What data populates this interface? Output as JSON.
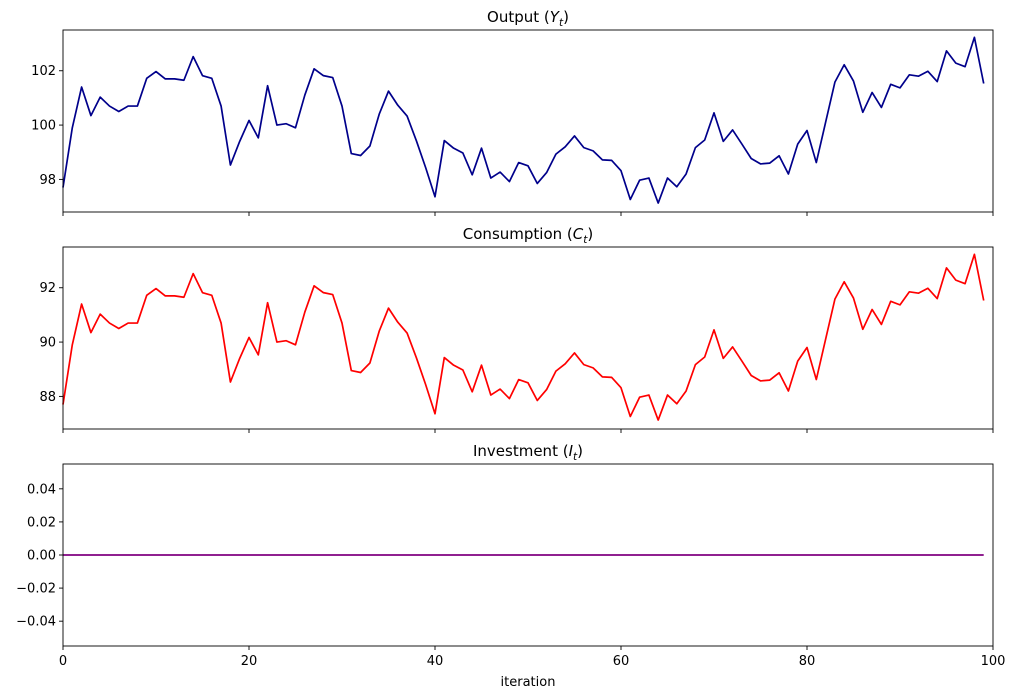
{
  "chart_data": [
    {
      "type": "line",
      "title": "Output (Y_t)",
      "title_parts": {
        "text": "Output (",
        "var": "Y",
        "sub": "t",
        "close": ")"
      },
      "xlabel": "",
      "ylabel": "",
      "xlim": [
        0,
        100
      ],
      "ylim": [
        96.8,
        103.5
      ],
      "yticks": [
        98,
        100,
        102
      ],
      "ytick_labels": [
        "98",
        "100",
        "102"
      ],
      "xticks": [
        0,
        20,
        40,
        60,
        80,
        100
      ],
      "show_xtick_labels": false,
      "grid": false,
      "color": "#00008b",
      "series": [
        {
          "x": [
            0,
            1,
            2,
            3,
            4,
            5,
            6,
            7,
            8,
            9,
            10,
            11,
            12,
            13,
            14,
            15,
            16,
            17,
            18,
            19,
            20,
            21,
            22,
            23,
            24,
            25,
            26,
            27,
            28,
            29,
            30,
            31,
            32,
            33,
            34,
            35,
            36,
            37,
            38,
            39,
            40,
            41,
            42,
            43,
            44,
            45,
            46,
            47,
            48,
            49,
            50,
            51,
            52,
            53,
            54,
            55,
            56,
            57,
            58,
            59,
            60,
            61,
            62,
            63,
            64,
            65,
            66,
            67,
            68,
            69,
            70,
            71,
            72,
            73,
            74,
            75,
            76,
            77,
            78,
            79,
            80,
            81,
            82,
            83,
            84,
            85,
            86,
            87,
            88,
            89,
            90,
            91,
            92,
            93,
            94,
            95,
            96,
            97,
            98,
            99
          ],
          "values": [
            97.7,
            99.9,
            101.4,
            100.35,
            101.03,
            100.7,
            100.5,
            100.7,
            100.7,
            101.72,
            101.97,
            101.7,
            101.7,
            101.65,
            102.52,
            101.82,
            101.72,
            100.7,
            98.53,
            99.4,
            100.17,
            99.53,
            101.45,
            100.0,
            100.05,
            99.9,
            101.1,
            102.07,
            101.82,
            101.75,
            100.7,
            98.95,
            98.88,
            99.23,
            100.4,
            101.25,
            100.73,
            100.33,
            99.42,
            98.43,
            97.36,
            99.43,
            99.15,
            98.97,
            98.17,
            99.15,
            98.05,
            98.27,
            97.92,
            98.62,
            98.5,
            97.85,
            98.25,
            98.93,
            99.2,
            99.6,
            99.17,
            99.05,
            98.72,
            98.7,
            98.32,
            97.26,
            97.97,
            98.05,
            97.13,
            98.05,
            97.73,
            98.2,
            99.17,
            99.45,
            100.45,
            99.4,
            99.82,
            99.3,
            98.77,
            98.57,
            98.6,
            98.87,
            98.2,
            99.3,
            99.8,
            98.62,
            100.1,
            101.58,
            102.22,
            101.62,
            100.47,
            101.2,
            100.65,
            101.5,
            101.37,
            101.85,
            101.8,
            101.98,
            101.6,
            102.73,
            102.28,
            102.15,
            103.23,
            101.53
          ]
        }
      ]
    },
    {
      "type": "line",
      "title": "Consumption (C_t)",
      "title_parts": {
        "text": "Consumption (",
        "var": "C",
        "sub": "t",
        "close": ")"
      },
      "xlabel": "",
      "ylabel": "",
      "xlim": [
        0,
        100
      ],
      "ylim": [
        86.8,
        93.5
      ],
      "yticks": [
        88,
        90,
        92
      ],
      "ytick_labels": [
        "88",
        "90",
        "92"
      ],
      "xticks": [
        0,
        20,
        40,
        60,
        80,
        100
      ],
      "show_xtick_labels": false,
      "grid": false,
      "color": "#ff0000",
      "series": [
        {
          "x": [
            0,
            1,
            2,
            3,
            4,
            5,
            6,
            7,
            8,
            9,
            10,
            11,
            12,
            13,
            14,
            15,
            16,
            17,
            18,
            19,
            20,
            21,
            22,
            23,
            24,
            25,
            26,
            27,
            28,
            29,
            30,
            31,
            32,
            33,
            34,
            35,
            36,
            37,
            38,
            39,
            40,
            41,
            42,
            43,
            44,
            45,
            46,
            47,
            48,
            49,
            50,
            51,
            52,
            53,
            54,
            55,
            56,
            57,
            58,
            59,
            60,
            61,
            62,
            63,
            64,
            65,
            66,
            67,
            68,
            69,
            70,
            71,
            72,
            73,
            74,
            75,
            76,
            77,
            78,
            79,
            80,
            81,
            82,
            83,
            84,
            85,
            86,
            87,
            88,
            89,
            90,
            91,
            92,
            93,
            94,
            95,
            96,
            97,
            98,
            99
          ],
          "values": [
            87.7,
            89.9,
            91.4,
            90.35,
            91.03,
            90.7,
            90.5,
            90.7,
            90.7,
            91.72,
            91.97,
            91.7,
            91.7,
            91.65,
            92.52,
            91.82,
            91.72,
            90.7,
            88.53,
            89.4,
            90.17,
            89.53,
            91.45,
            90.0,
            90.05,
            89.9,
            91.1,
            92.07,
            91.82,
            91.75,
            90.7,
            88.95,
            88.88,
            89.23,
            90.4,
            91.25,
            90.73,
            90.33,
            89.42,
            88.43,
            87.36,
            89.43,
            89.15,
            88.97,
            88.17,
            89.15,
            88.05,
            88.27,
            87.92,
            88.62,
            88.5,
            87.85,
            88.25,
            88.93,
            89.2,
            89.6,
            89.17,
            89.05,
            88.72,
            88.7,
            88.32,
            87.26,
            87.97,
            88.05,
            87.13,
            88.05,
            87.73,
            88.2,
            89.17,
            89.45,
            90.45,
            89.4,
            89.82,
            89.3,
            88.77,
            88.57,
            88.6,
            88.87,
            88.2,
            89.3,
            89.8,
            88.62,
            90.1,
            91.58,
            92.22,
            91.62,
            90.47,
            91.2,
            90.65,
            91.5,
            91.37,
            91.85,
            91.8,
            91.98,
            91.6,
            92.73,
            92.28,
            92.15,
            93.23,
            91.53
          ]
        }
      ]
    },
    {
      "type": "line",
      "title": "Investment (I_t)",
      "title_parts": {
        "text": "Investment (",
        "var": "I",
        "sub": "t",
        "close": ")"
      },
      "xlabel": "iteration",
      "ylabel": "",
      "xlim": [
        0,
        100
      ],
      "ylim": [
        -0.055,
        0.055
      ],
      "yticks": [
        -0.04,
        -0.02,
        0.0,
        0.02,
        0.04
      ],
      "ytick_labels": [
        "−0.04",
        "−0.02",
        "0.00",
        "0.02",
        "0.04"
      ],
      "xticks": [
        0,
        20,
        40,
        60,
        80,
        100
      ],
      "xtick_labels": [
        "0",
        "20",
        "40",
        "60",
        "80",
        "100"
      ],
      "show_xtick_labels": true,
      "grid": false,
      "color": "#800080",
      "series": [
        {
          "x": [
            0,
            99
          ],
          "values": [
            0.0,
            0.0
          ]
        }
      ]
    }
  ]
}
